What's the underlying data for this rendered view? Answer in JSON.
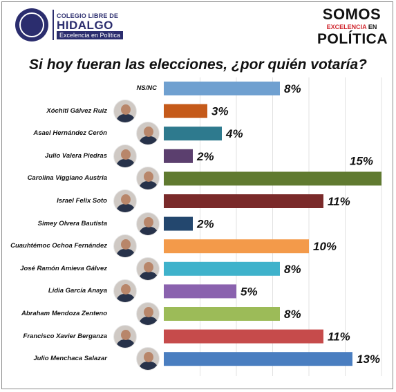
{
  "header": {
    "logo_left_line1": "COLEGIO LIBRE DE",
    "logo_left_line2": "HIDALGO",
    "logo_left_line3": "Excelencia en Política",
    "logo_right_line1": "SOMOS",
    "logo_right_line2a": "EXCELENCIA",
    "logo_right_line2b": "EN",
    "logo_right_line3": "POLÍTICA"
  },
  "colors": {
    "brand_navy": "#2b2d6e",
    "brand_red": "#d0262e"
  },
  "chart_data": {
    "type": "bar",
    "orientation": "horizontal",
    "title": "Si hoy fueran las elecciones, ¿por quién votaría?",
    "categories": [
      "NS/NC",
      "Xóchitl Gálvez Ruiz",
      "Asael Hernández Cerón",
      "Julio Valera Piedras",
      "Carolina Viggiano Austria",
      "Israel Felix Soto",
      "Simey Olvera Bautista",
      "Cuauhtémoc Ochoa Fernández",
      "José Ramón Amieva Gálvez",
      "Lidia García Anaya",
      "Abraham Mendoza Zenteno",
      "Francisco Xavier Berganza",
      "Julio Menchaca Salazar"
    ],
    "values": [
      8,
      3,
      4,
      2,
      15,
      11,
      2,
      10,
      8,
      5,
      8,
      11,
      13
    ],
    "value_labels": [
      "8%",
      "3%",
      "4%",
      "2%",
      "15%",
      "11%",
      "2%",
      "10%",
      "8%",
      "5%",
      "8%",
      "11%",
      "13%"
    ],
    "bar_colors": [
      "#6fa0d0",
      "#c55a1a",
      "#2e7a8e",
      "#5b3f6e",
      "#607a30",
      "#7a2a2a",
      "#23476e",
      "#f39a4a",
      "#3fb2cb",
      "#8a62ae",
      "#9cbb58",
      "#c64b4b",
      "#4a7ec0"
    ],
    "xlim": [
      0,
      15
    ],
    "grid": true,
    "has_photo": [
      false,
      true,
      true,
      true,
      true,
      true,
      true,
      true,
      true,
      true,
      true,
      true,
      true
    ]
  }
}
